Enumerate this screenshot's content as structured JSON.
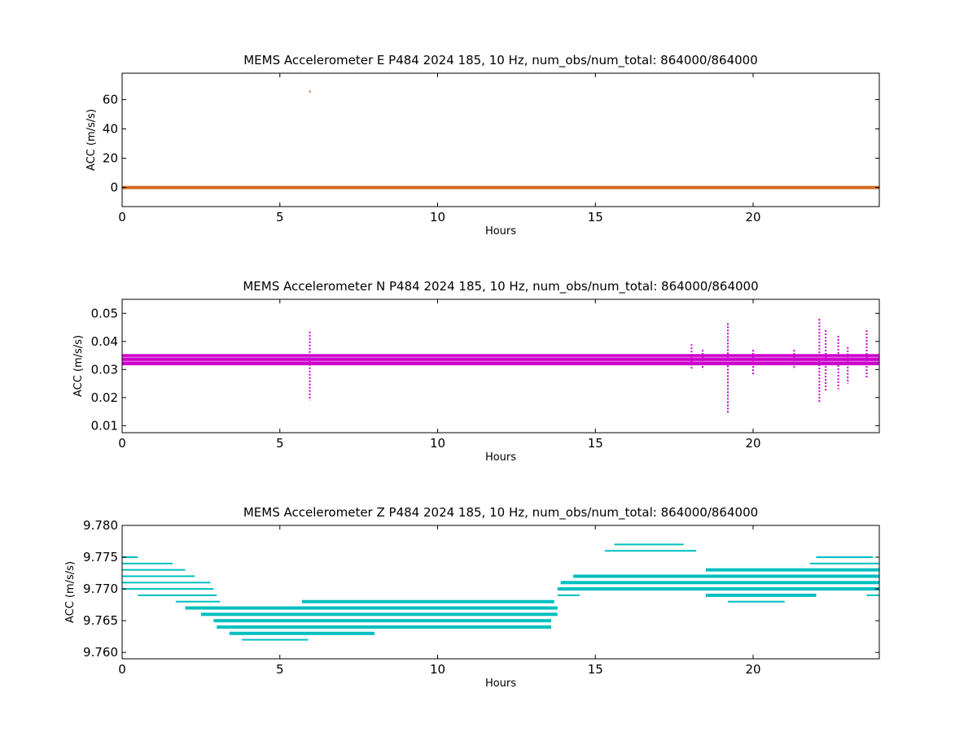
{
  "chart_data": [
    {
      "type": "scatter",
      "title": "MEMS Accelerometer E P484 2024 185, 10 Hz, num_obs/num_total: 864000/864000",
      "xlabel": "Hours",
      "ylabel": "ACC (m/s/s)",
      "xlim": [
        0,
        24
      ],
      "ylim": [
        -13,
        78
      ],
      "xticks": [
        0,
        5,
        10,
        15,
        20
      ],
      "yticks": [
        0,
        20,
        40,
        60
      ],
      "grid": false,
      "legend": "none",
      "color": "#d2691e",
      "series": [
        {
          "bands": [
            {
              "y": 0,
              "x": [
                0,
                24
              ]
            }
          ],
          "outliers": [
            [
              5.95,
              65.5
            ]
          ]
        }
      ]
    },
    {
      "type": "scatter",
      "title": "MEMS Accelerometer N P484 2024 185, 10 Hz, num_obs/num_total: 864000/864000",
      "xlabel": "Hours",
      "ylabel": "ACC (m/s/s)",
      "xlim": [
        0,
        24
      ],
      "ylim": [
        0.0075,
        0.055
      ],
      "xticks": [
        0,
        5,
        10,
        15,
        20
      ],
      "yticks": [
        0.01,
        0.02,
        0.03,
        0.04,
        0.05
      ],
      "ytick_labels": [
        "0.01",
        "0.02",
        "0.03",
        "0.04",
        "0.05"
      ],
      "grid": false,
      "legend": "none",
      "color": "#cc00cc",
      "series": [
        {
          "band": {
            "x": [
              0,
              24
            ],
            "ymin": 0.0315,
            "ymax": 0.0355,
            "center": 0.0335
          },
          "spikes": [
            {
              "x": 5.95,
              "ymin": 0.019,
              "ymax": 0.0435
            },
            {
              "x": 19.2,
              "ymin": 0.014,
              "ymax": 0.0465
            },
            {
              "x": 22.1,
              "ymin": 0.018,
              "ymax": 0.048
            },
            {
              "x": 22.3,
              "ymin": 0.022,
              "ymax": 0.044
            },
            {
              "x": 22.7,
              "ymin": 0.023,
              "ymax": 0.042
            },
            {
              "x": 23.0,
              "ymin": 0.025,
              "ymax": 0.038
            },
            {
              "x": 23.6,
              "ymin": 0.027,
              "ymax": 0.044
            },
            {
              "x": 18.05,
              "ymin": 0.03,
              "ymax": 0.039
            },
            {
              "x": 18.4,
              "ymin": 0.03,
              "ymax": 0.037
            },
            {
              "x": 20.0,
              "ymin": 0.028,
              "ymax": 0.037
            },
            {
              "x": 21.3,
              "ymin": 0.03,
              "ymax": 0.037
            }
          ]
        }
      ]
    },
    {
      "type": "scatter",
      "title": "MEMS Accelerometer Z P484 2024 185, 10 Hz, num_obs/num_total: 864000/864000",
      "xlabel": "Hours",
      "ylabel": "ACC (m/s/s)",
      "xlim": [
        0,
        24
      ],
      "ylim": [
        9.759,
        9.78
      ],
      "xticks": [
        0,
        5,
        10,
        15,
        20
      ],
      "yticks": [
        9.76,
        9.765,
        9.77,
        9.775,
        9.78
      ],
      "ytick_labels": [
        "9.760",
        "9.765",
        "9.770",
        "9.775",
        "9.780"
      ],
      "grid": false,
      "legend": "none",
      "color": "#00bfbf",
      "series": [
        {
          "levels": [
            {
              "y": 9.775,
              "segments": [
                [
                  0.0,
                  0.5
                ],
                [
                  22.0,
                  23.8
                ]
              ]
            },
            {
              "y": 9.774,
              "segments": [
                [
                  0.0,
                  1.6
                ],
                [
                  21.8,
                  24.0
                ]
              ]
            },
            {
              "y": 9.773,
              "segments": [
                [
                  0.0,
                  2.0
                ],
                [
                  18.5,
                  24.0
                ]
              ]
            },
            {
              "y": 9.772,
              "segments": [
                [
                  0.0,
                  2.3
                ],
                [
                  14.3,
                  24.0
                ]
              ]
            },
            {
              "y": 9.771,
              "segments": [
                [
                  0.0,
                  2.8
                ],
                [
                  13.9,
                  24.0
                ]
              ]
            },
            {
              "y": 9.77,
              "segments": [
                [
                  0.0,
                  2.9
                ],
                [
                  13.8,
                  24.0
                ]
              ]
            },
            {
              "y": 9.769,
              "segments": [
                [
                  0.5,
                  3.0
                ],
                [
                  13.8,
                  14.5
                ],
                [
                  18.5,
                  22.0
                ],
                [
                  23.6,
                  24.0
                ]
              ]
            },
            {
              "y": 9.768,
              "segments": [
                [
                  1.7,
                  3.1
                ],
                [
                  5.7,
                  13.7
                ],
                [
                  19.2,
                  21.0
                ]
              ]
            },
            {
              "y": 9.767,
              "segments": [
                [
                  2.0,
                  13.8
                ]
              ]
            },
            {
              "y": 9.766,
              "segments": [
                [
                  2.5,
                  13.8
                ]
              ]
            },
            {
              "y": 9.765,
              "segments": [
                [
                  2.9,
                  13.6
                ]
              ]
            },
            {
              "y": 9.764,
              "segments": [
                [
                  3.0,
                  13.6
                ]
              ]
            },
            {
              "y": 9.763,
              "segments": [
                [
                  3.4,
                  8.0
                ]
              ]
            },
            {
              "y": 9.762,
              "segments": [
                [
                  3.8,
                  5.9
                ]
              ]
            },
            {
              "y": 9.777,
              "segments": [
                [
                  15.6,
                  17.8
                ]
              ]
            },
            {
              "y": 9.776,
              "segments": [
                [
                  15.3,
                  18.2
                ]
              ]
            }
          ]
        }
      ]
    }
  ]
}
